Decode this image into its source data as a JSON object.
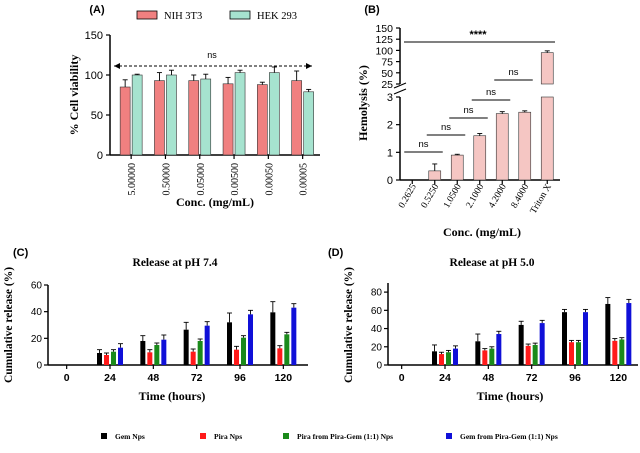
{
  "colors": {
    "nih": "#f08080",
    "hek": "#a6e3cf",
    "hemo": "#f5c6c3",
    "gem": "#000000",
    "pira": "#ff1a1a",
    "pira_mix": "#1a8a1a",
    "gem_mix": "#1010d8",
    "axis": "#000000"
  },
  "chart_data": [
    {
      "panel": "(A)",
      "type": "bar",
      "xlabel": "Conc. (mg/mL)",
      "ylabel": "% Cell viability",
      "ylim": [
        0,
        150
      ],
      "yticks": [
        "0",
        "50",
        "100",
        "150"
      ],
      "categories": [
        "5.00000",
        "0.50000",
        "0.05000",
        "0.00500",
        "0.00050",
        "0.00005"
      ],
      "series": [
        {
          "name": "NIH 3T3",
          "color_key": "nih",
          "values": [
            85,
            93,
            93,
            89,
            88,
            93
          ],
          "errors": [
            9,
            10,
            7,
            8,
            3,
            12
          ]
        },
        {
          "name": "HEK 293",
          "color_key": "hek",
          "values": [
            100,
            100,
            95,
            103,
            103,
            79
          ],
          "errors": [
            1,
            6,
            6,
            3,
            7,
            3
          ]
        }
      ],
      "annotation": "ns"
    },
    {
      "panel": "(B)",
      "type": "bar",
      "xlabel": "Conc. (mg/mL)",
      "ylabel": "Hemolysis (%)",
      "ylim_lower": [
        0,
        3
      ],
      "ylim_upper": [
        25,
        150
      ],
      "yticks_lower": [
        "0",
        "1",
        "2",
        "3"
      ],
      "yticks_upper": [
        "25",
        "50",
        "75",
        "100",
        "125",
        "150"
      ],
      "categories": [
        "0.2625",
        "0.5250",
        "1.0500",
        "2.1000",
        "4.2000",
        "8.4000",
        "Triton X"
      ],
      "values": [
        0,
        0.33,
        0.9,
        1.6,
        2.4,
        2.45,
        95
      ],
      "errors": [
        0,
        0.25,
        0.03,
        0.08,
        0.07,
        0.05,
        4
      ],
      "pairs": [
        "ns",
        "ns",
        "ns",
        "ns",
        "ns"
      ],
      "overall": "****"
    },
    {
      "panel": "(C)",
      "type": "bar",
      "title": "Release at pH 7.4",
      "xlabel": "Time (hours)",
      "ylabel": "Cumulative release (%)",
      "ylim": [
        0,
        60
      ],
      "yticks": [
        "0",
        "20",
        "40",
        "60"
      ],
      "categories": [
        "0",
        "24",
        "48",
        "72",
        "96",
        "120"
      ],
      "series": [
        {
          "name": "Gem Nps",
          "color_key": "gem",
          "values": [
            0,
            9,
            18,
            26.5,
            32,
            39.5
          ],
          "errors": [
            0,
            2.5,
            4,
            5.5,
            7,
            8
          ]
        },
        {
          "name": "Pira Nps",
          "color_key": "pira",
          "values": [
            0,
            7.5,
            9.5,
            10,
            11.5,
            12.5
          ],
          "errors": [
            0,
            1.5,
            2,
            2,
            2.5,
            2
          ]
        },
        {
          "name": "Pira from Pira-Gem (1:1) Nps",
          "color_key": "pira_mix",
          "values": [
            0,
            10,
            15,
            18,
            20.5,
            23
          ],
          "errors": [
            0,
            1.5,
            1.5,
            1.5,
            1.5,
            1.5
          ]
        },
        {
          "name": "Gem from Pira-Gem (1:1) Nps",
          "color_key": "gem_mix",
          "values": [
            0,
            13,
            19,
            29.5,
            38,
            43
          ],
          "errors": [
            0,
            3,
            3.5,
            3,
            3,
            3
          ]
        }
      ]
    },
    {
      "panel": "(D)",
      "type": "bar",
      "title": "Release at pH 5.0",
      "xlabel": "Time (hours)",
      "ylabel": "Cumulative release (%)",
      "ylim": [
        0,
        90
      ],
      "yticks": [
        "0",
        "20",
        "40",
        "60",
        "80"
      ],
      "categories": [
        "0",
        "24",
        "48",
        "72",
        "96",
        "120"
      ],
      "series": [
        {
          "name": "Gem Nps",
          "color_key": "gem",
          "values": [
            0,
            15,
            26,
            44,
            58,
            67
          ],
          "errors": [
            0,
            7,
            8,
            4,
            3,
            7
          ]
        },
        {
          "name": "Pira Nps",
          "color_key": "pira",
          "values": [
            0,
            12,
            16,
            21,
            25,
            26.5
          ],
          "errors": [
            0,
            2,
            2,
            2,
            2,
            2.5
          ]
        },
        {
          "name": "Pira from Pira-Gem (1:1) Nps",
          "color_key": "pira_mix",
          "values": [
            0,
            14,
            18,
            22,
            25,
            28
          ],
          "errors": [
            0,
            2,
            2,
            2,
            2,
            2
          ]
        },
        {
          "name": "Gem from Pira-Gem (1:1) Nps",
          "color_key": "gem_mix",
          "values": [
            0,
            18,
            34,
            46,
            58,
            68
          ],
          "errors": [
            0,
            3,
            3,
            3,
            3,
            4
          ]
        }
      ]
    }
  ]
}
